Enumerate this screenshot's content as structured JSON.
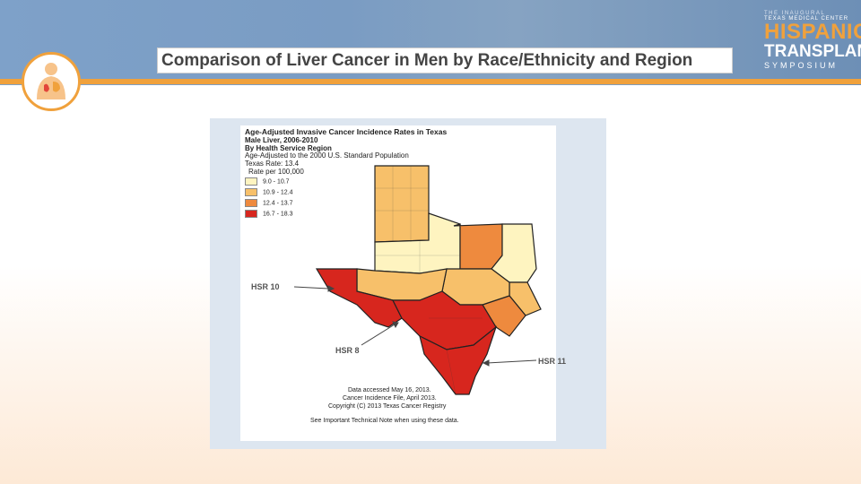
{
  "slide": {
    "title": "Comparison of Liver Cancer in Men by Race/Ethnicity and Region"
  },
  "brand": {
    "the": "THE INAUGURAL",
    "tmc": "TEXAS MEDICAL CENTER",
    "hispanic": "HISPANIC",
    "transplant": "TRANSPLANT",
    "symposium": "SYMPOSIUM"
  },
  "map": {
    "title1": "Age-Adjusted Invasive Cancer Incidence Rates in Texas",
    "title2": "Male Liver, 2006-2010",
    "title3": "By Health Service Region",
    "title4": "Age-Adjusted to the 2000 U.S. Standard Population",
    "title5": "Texas Rate: 13.4",
    "legend_header": "Rate per 100,000",
    "legend": [
      {
        "label": "9.0 -    10.7",
        "color": "#fef4c0"
      },
      {
        "label": "10.9 -   12.4",
        "color": "#f7c06a"
      },
      {
        "label": "12.4 -   13.7",
        "color": "#ee8a3e"
      },
      {
        "label": "16.7 -   18.3",
        "color": "#d7261e"
      }
    ],
    "note1": "Data accessed May 16, 2013.",
    "note2": "Cancer Incidence File, April 2013.",
    "note3": "Copyright (C) 2013 Texas Cancer Registry",
    "note4": "See Important Technical Note when using these data.",
    "hsr10": "HSR 10",
    "hsr8": "HSR 8",
    "hsr11": "HSR 11"
  }
}
